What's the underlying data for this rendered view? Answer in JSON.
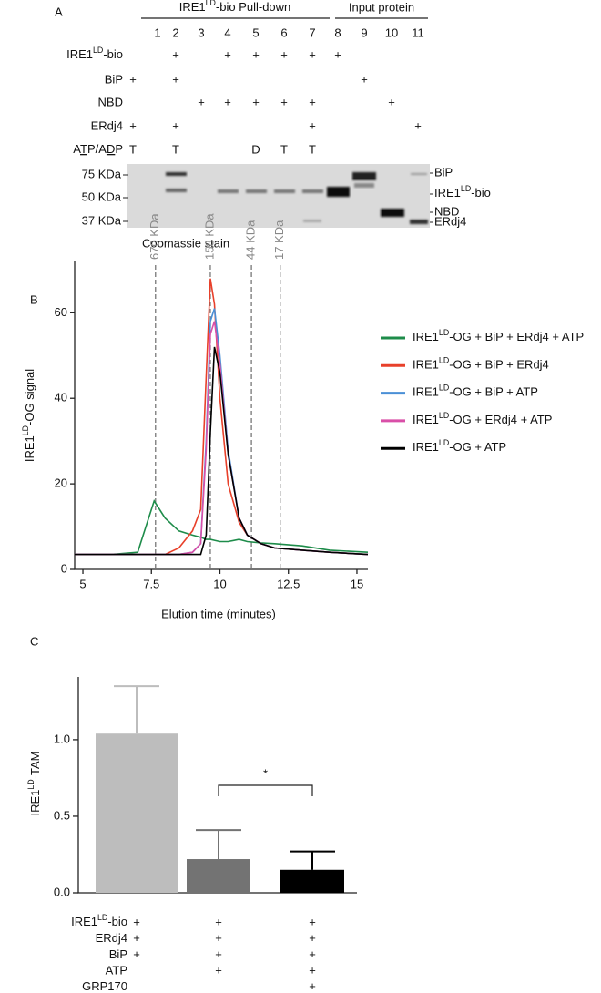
{
  "panel_a": {
    "label": "A",
    "groups": [
      [
        {
          "text": "IRE1"
        },
        {
          "text": "LD",
          "sup": true
        },
        {
          "text": "-bio Pull-down"
        }
      ],
      "Input protein"
    ],
    "lanes": [
      "1",
      "2",
      "3",
      "4",
      "5",
      "6",
      "7",
      "8",
      "9",
      "10",
      "11"
    ],
    "rows": [
      {
        "label": [
          {
            "text": "IRE1"
          },
          {
            "text": "LD",
            "sup": true
          },
          {
            "text": "-bio"
          }
        ],
        "marks": [
          null,
          "+",
          null,
          "+",
          "+",
          "+",
          "+",
          "+",
          null,
          null,
          null
        ]
      },
      {
        "label": "BiP",
        "marks": [
          "+",
          "+",
          null,
          null,
          null,
          null,
          null,
          null,
          "+",
          null,
          null
        ]
      },
      {
        "label": "NBD",
        "marks": [
          null,
          null,
          "+",
          "+",
          "+",
          "+",
          "+",
          null,
          null,
          "+",
          null
        ]
      },
      {
        "label": "ERdj4",
        "marks": [
          "+",
          "+",
          null,
          null,
          null,
          null,
          "+",
          null,
          null,
          null,
          "+"
        ]
      },
      {
        "label": [
          {
            "text": "A"
          },
          {
            "text": "T",
            "u": true
          },
          {
            "text": "P/A"
          },
          {
            "text": "D",
            "u": true
          },
          {
            "text": "P"
          }
        ],
        "marks": [
          "T",
          "T",
          null,
          null,
          "D",
          "T",
          "T",
          null,
          null,
          null,
          null
        ]
      }
    ],
    "markers": [
      "75 KDa",
      "50 KDa",
      "37 KDa"
    ],
    "bands": [
      "BiP",
      [
        {
          "text": "IRE1"
        },
        {
          "text": "LD",
          "sup": true
        },
        {
          "text": "-bio"
        }
      ],
      "NBD",
      "ERdj4"
    ],
    "caption": "Coomassie stain"
  },
  "chart_data": [
    {
      "type": "line",
      "panel": "B",
      "x_label": "Elution time (minutes)",
      "y_label": [
        {
          "text": "IRE1"
        },
        {
          "text": "LD",
          "sup": true
        },
        {
          "text": "-OG signal"
        }
      ],
      "x": [
        4.7,
        5,
        6,
        7,
        7.3,
        7.6,
        8,
        8.5,
        9,
        9.3,
        9.5,
        9.65,
        9.8,
        10,
        10.3,
        10.7,
        11,
        11.5,
        12,
        13,
        14,
        15.4
      ],
      "xlim": [
        4.7,
        15.4
      ],
      "xticks": [
        5,
        7.5,
        10,
        12.5,
        15
      ],
      "ylim": [
        0,
        72
      ],
      "yticks": [
        0,
        20,
        40,
        60
      ],
      "markers": [
        {
          "x": 7.65,
          "label": "670 KDa"
        },
        {
          "x": 9.65,
          "label": "158 KDa"
        },
        {
          "x": 11.15,
          "label": "44 KDa"
        },
        {
          "x": 12.2,
          "label": "17 KDa"
        }
      ],
      "series": [
        {
          "name": [
            {
              "text": "IRE1"
            },
            {
              "text": "LD",
              "sup": true
            },
            {
              "text": "-OG + BiP + ERdj4 + ATP"
            }
          ],
          "color": "#1e8c4a",
          "values": [
            3.5,
            3.5,
            3.5,
            4,
            10,
            16,
            12,
            9,
            8,
            7.5,
            7,
            7,
            6.8,
            6.5,
            6.5,
            7,
            6.5,
            6.2,
            6,
            5.5,
            4.5,
            4
          ]
        },
        {
          "name": [
            {
              "text": "IRE1"
            },
            {
              "text": "LD",
              "sup": true
            },
            {
              "text": "-OG + BiP + ERdj4"
            }
          ],
          "color": "#e8402a",
          "values": [
            3.5,
            3.5,
            3.5,
            3.5,
            3.5,
            3.5,
            3.5,
            5,
            9,
            14,
            45,
            68,
            62,
            40,
            20,
            11,
            8,
            6,
            5,
            4.5,
            4,
            3.5
          ]
        },
        {
          "name": [
            {
              "text": "IRE1"
            },
            {
              "text": "LD",
              "sup": true
            },
            {
              "text": "-OG + BiP + ATP"
            }
          ],
          "color": "#4a8fd6",
          "values": [
            3.5,
            3.5,
            3.5,
            3.5,
            3.5,
            3.5,
            3.5,
            3.5,
            4,
            6,
            30,
            58,
            61,
            50,
            28,
            12,
            8,
            6,
            5,
            4.5,
            4,
            3.5
          ]
        },
        {
          "name": [
            {
              "text": "IRE1"
            },
            {
              "text": "LD",
              "sup": true
            },
            {
              "text": "-OG + ERdj4 + ATP"
            }
          ],
          "color": "#d94fa8",
          "values": [
            3.5,
            3.5,
            3.5,
            3.5,
            3.5,
            3.5,
            3.5,
            3.5,
            4,
            6,
            28,
            55,
            58,
            48,
            27,
            12,
            8,
            6,
            5,
            4.5,
            4,
            3.5
          ]
        },
        {
          "name": [
            {
              "text": "IRE1"
            },
            {
              "text": "LD",
              "sup": true
            },
            {
              "text": "-OG + ATP"
            }
          ],
          "color": "#000000",
          "values": [
            3.5,
            3.5,
            3.5,
            3.5,
            3.5,
            3.5,
            3.5,
            3.5,
            3.5,
            3.5,
            8,
            32,
            52,
            46,
            27,
            12,
            8,
            6,
            5,
            4.5,
            4,
            3.5
          ]
        }
      ]
    },
    {
      "type": "bar",
      "panel": "C",
      "y_label": [
        {
          "text": "IRE1"
        },
        {
          "text": "LD",
          "sup": true
        },
        {
          "text": "-TAM"
        }
      ],
      "categories": [
        null,
        null,
        null
      ],
      "values": [
        1.04,
        0.22,
        0.15
      ],
      "errors": [
        0.31,
        0.19,
        0.12
      ],
      "colors": [
        "#bdbdbd",
        "#737373",
        "#000000"
      ],
      "ylim": [
        0,
        1.41
      ],
      "yticks": [
        {
          "value": 0,
          "label": "0.0"
        },
        {
          "value": 0.5,
          "label": "0.5"
        },
        {
          "value": 1,
          "label": "1.0"
        }
      ],
      "significance_label": "*",
      "conditions": [
        {
          "label": [
            {
              "text": "IRE1"
            },
            {
              "text": "LD",
              "sup": true
            },
            {
              "text": "-bio"
            }
          ],
          "marks": [
            "+",
            "+",
            "+"
          ]
        },
        {
          "label": "ERdj4",
          "marks": [
            "+",
            "+",
            "+"
          ]
        },
        {
          "label": "BiP",
          "marks": [
            "+",
            "+",
            "+"
          ]
        },
        {
          "label": "ATP",
          "marks": [
            null,
            "+",
            "+"
          ]
        },
        {
          "label": "GRP170",
          "marks": [
            null,
            null,
            "+"
          ]
        }
      ]
    }
  ]
}
